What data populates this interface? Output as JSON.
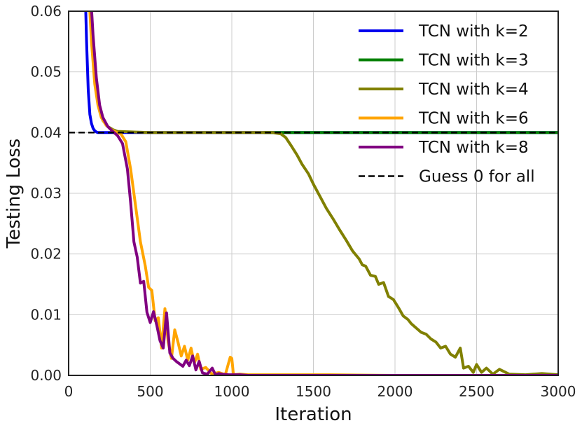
{
  "chart_data": {
    "type": "line",
    "title": "",
    "xlabel": "Iteration",
    "ylabel": "Testing Loss",
    "xlim": [
      0,
      3000
    ],
    "ylim": [
      0,
      0.06
    ],
    "xticks": [
      0,
      500,
      1000,
      1500,
      2000,
      2500,
      3000
    ],
    "xtick_labels": [
      "0",
      "500",
      "1000",
      "1500",
      "2000",
      "2500",
      "3000"
    ],
    "yticks": [
      0,
      0.01,
      0.02,
      0.03,
      0.04,
      0.05,
      0.06
    ],
    "ytick_labels": [
      "0.00",
      "0.01",
      "0.02",
      "0.03",
      "0.04",
      "0.05",
      "0.06"
    ],
    "grid": true,
    "legend_position": "top-right",
    "series": [
      {
        "name": "TCN with k=2",
        "color": "#0000ee",
        "style": "solid",
        "x": [
          100,
          110,
          120,
          130,
          140,
          150,
          160,
          170,
          180,
          200,
          250,
          300,
          400,
          500,
          600,
          800,
          1000,
          1200,
          1500,
          2000,
          2500,
          3000
        ],
        "y": [
          0.065,
          0.055,
          0.047,
          0.043,
          0.0415,
          0.0407,
          0.0403,
          0.0401,
          0.04,
          0.04,
          0.04,
          0.04,
          0.04,
          0.04,
          0.04,
          0.04,
          0.04,
          0.04,
          0.04,
          0.04,
          0.04,
          0.04
        ]
      },
      {
        "name": "TCN with k=3",
        "color": "#008000",
        "style": "solid",
        "x": [
          1200,
          1400,
          1600,
          1800,
          2000,
          2200,
          2400,
          2600,
          2800,
          3000
        ],
        "y": [
          0.04,
          0.04,
          0.04,
          0.04,
          0.04,
          0.04,
          0.04,
          0.04,
          0.04,
          0.04
        ]
      },
      {
        "name": "TCN with k=4",
        "color": "#808000",
        "style": "solid",
        "x": [
          130,
          150,
          170,
          190,
          210,
          240,
          270,
          300,
          400,
          500,
          600,
          800,
          1000,
          1200,
          1250,
          1300,
          1330,
          1360,
          1400,
          1430,
          1470,
          1500,
          1540,
          1580,
          1620,
          1660,
          1700,
          1740,
          1780,
          1800,
          1820,
          1850,
          1880,
          1900,
          1930,
          1960,
          1990,
          2020,
          2050,
          2080,
          2100,
          2130,
          2160,
          2190,
          2220,
          2250,
          2280,
          2310,
          2340,
          2370,
          2400,
          2420,
          2450,
          2480,
          2500,
          2530,
          2560,
          2600,
          2640,
          2700,
          2800,
          2900,
          3000
        ],
        "y": [
          0.065,
          0.055,
          0.048,
          0.044,
          0.042,
          0.041,
          0.0405,
          0.0402,
          0.0401,
          0.04,
          0.04,
          0.04,
          0.04,
          0.04,
          0.04,
          0.0398,
          0.0392,
          0.038,
          0.0363,
          0.0348,
          0.0332,
          0.0315,
          0.0295,
          0.0275,
          0.0258,
          0.024,
          0.0223,
          0.0205,
          0.0192,
          0.0182,
          0.018,
          0.0165,
          0.0163,
          0.015,
          0.0153,
          0.013,
          0.0125,
          0.0112,
          0.0098,
          0.0092,
          0.0085,
          0.0078,
          0.0071,
          0.0068,
          0.006,
          0.0055,
          0.0045,
          0.0048,
          0.0035,
          0.003,
          0.0045,
          0.0012,
          0.0015,
          0.0005,
          0.0018,
          0.0005,
          0.0012,
          0.0002,
          0.001,
          0.0002,
          0.0001,
          0.0003,
          0.0001
        ]
      },
      {
        "name": "TCN with k=6",
        "color": "#ffa500",
        "style": "solid",
        "x": [
          120,
          140,
          160,
          180,
          200,
          230,
          260,
          290,
          320,
          350,
          380,
          410,
          440,
          470,
          490,
          510,
          530,
          550,
          570,
          590,
          610,
          630,
          650,
          670,
          690,
          710,
          730,
          750,
          770,
          790,
          810,
          840,
          880,
          920,
          960,
          990,
          1000,
          1010,
          1050,
          1100,
          1200,
          1400,
          1600,
          2000,
          2500,
          3000
        ],
        "y": [
          0.065,
          0.055,
          0.048,
          0.0445,
          0.0425,
          0.0412,
          0.0405,
          0.0401,
          0.0398,
          0.0385,
          0.034,
          0.028,
          0.022,
          0.018,
          0.0145,
          0.014,
          0.009,
          0.0095,
          0.0045,
          0.011,
          0.0055,
          0.0028,
          0.0075,
          0.0055,
          0.0032,
          0.0048,
          0.0025,
          0.0045,
          0.002,
          0.0035,
          0.001,
          0.0013,
          0.0002,
          0.0005,
          0.0001,
          0.003,
          0.0028,
          0.0001,
          0.0002,
          0.0001,
          0.0001,
          0.0001,
          0.0001,
          0.0,
          0.0,
          0.0
        ]
      },
      {
        "name": "TCN with k=8",
        "color": "#800080",
        "style": "solid",
        "x": [
          130,
          150,
          170,
          190,
          210,
          240,
          270,
          300,
          330,
          360,
          380,
          400,
          420,
          440,
          460,
          480,
          500,
          520,
          540,
          560,
          580,
          600,
          620,
          640,
          660,
          680,
          700,
          720,
          740,
          760,
          780,
          800,
          820,
          850,
          880,
          900,
          920,
          940,
          980,
          1000,
          1050,
          1100,
          1200,
          1500,
          2000,
          2500,
          3000
        ],
        "y": [
          0.065,
          0.056,
          0.049,
          0.0445,
          0.0425,
          0.041,
          0.0402,
          0.0395,
          0.0382,
          0.034,
          0.0285,
          0.022,
          0.0195,
          0.0152,
          0.0155,
          0.0104,
          0.0087,
          0.0105,
          0.0083,
          0.0057,
          0.0045,
          0.0103,
          0.0037,
          0.0028,
          0.0023,
          0.0019,
          0.0015,
          0.0025,
          0.0016,
          0.0032,
          0.0009,
          0.0023,
          0.0004,
          0.0002,
          0.0012,
          0.0001,
          0.0003,
          0.0002,
          0.0001,
          0.0001,
          0.0001,
          0.0,
          0.0,
          0.0,
          0.0,
          0.0,
          0.0
        ]
      },
      {
        "name": "Guess 0 for all",
        "color": "#000000",
        "style": "dashed",
        "x": [
          0,
          3000
        ],
        "y": [
          0.04,
          0.04
        ]
      }
    ]
  }
}
